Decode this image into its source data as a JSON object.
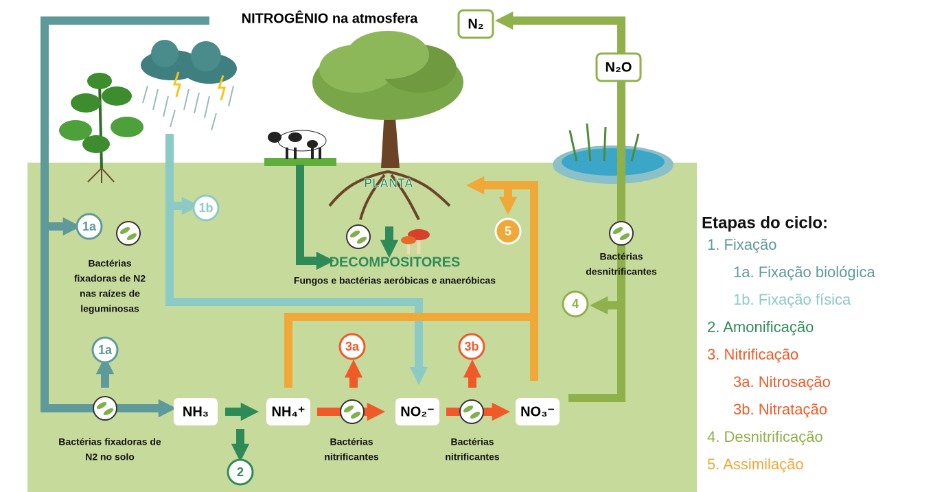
{
  "header": {
    "title": "NITROGÊNIO na atmosfera"
  },
  "molecules": {
    "n2": "N₂",
    "n2o": "N₂O",
    "nh3": "NH₃",
    "nh4": "NH₄⁺",
    "no2": "NO₂⁻",
    "no3": "NO₃⁻"
  },
  "steps": [
    "1a",
    "1b",
    "1a",
    "2",
    "3a",
    "3b",
    "4",
    "5"
  ],
  "labels": {
    "planta": "PLANTA",
    "decompositores": "DECOMPOSITORES"
  },
  "captions": [
    {
      "lines": [
        "Bactérias",
        "fixadoras de N2",
        "nas raízes de",
        "leguminosas"
      ]
    },
    {
      "lines": [
        "Fungos e bactérias  aeróbicas e anaeróbicas"
      ]
    },
    {
      "lines": [
        "Bactérias",
        "desnitrificantes"
      ]
    },
    {
      "lines": [
        "Bactérias fixadoras de",
        "N2 no solo"
      ]
    },
    {
      "lines": [
        "Bactérias",
        "nitrificantes"
      ]
    },
    {
      "lines": [
        "Bactérias",
        "nitrificantes"
      ]
    }
  ],
  "legend": {
    "title": "Etapas do ciclo:",
    "items": [
      {
        "text": "1. Fixação",
        "color": "#5f9a9a"
      },
      {
        "text": "1a. Fixação biológica",
        "color": "#5f9a9a"
      },
      {
        "text": "1b. Fixação física",
        "color": "#8ccac6"
      },
      {
        "text": "2. Amonificação",
        "color": "#2e8b57"
      },
      {
        "text": "3. Nitrificação",
        "color": "#f05a28"
      },
      {
        "text": "3a. Nitrosação",
        "color": "#f05a28"
      },
      {
        "text": "3b. Nitratação",
        "color": "#f05a28"
      },
      {
        "text": "4. Desnitrificação",
        "color": "#8fb04a"
      },
      {
        "text": "5. Assimilação",
        "color": "#f0a838"
      }
    ]
  }
}
